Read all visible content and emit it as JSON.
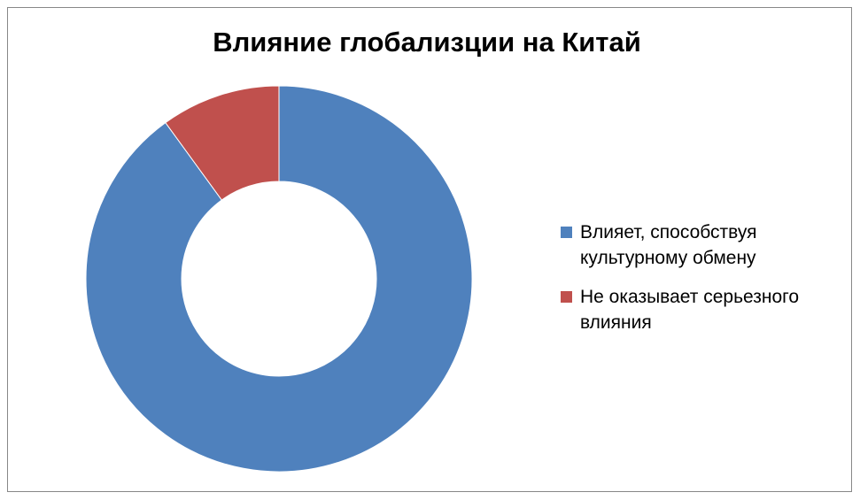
{
  "chart_data": {
    "type": "donut",
    "title": "Влияние глобализции на Китай",
    "categories": [
      "Влияет, способствуя культурному обмену",
      "Не оказывает серьезного влияния"
    ],
    "values": [
      90,
      10
    ],
    "colors": [
      "#4f81bd",
      "#c0504d"
    ],
    "legend": "right"
  }
}
